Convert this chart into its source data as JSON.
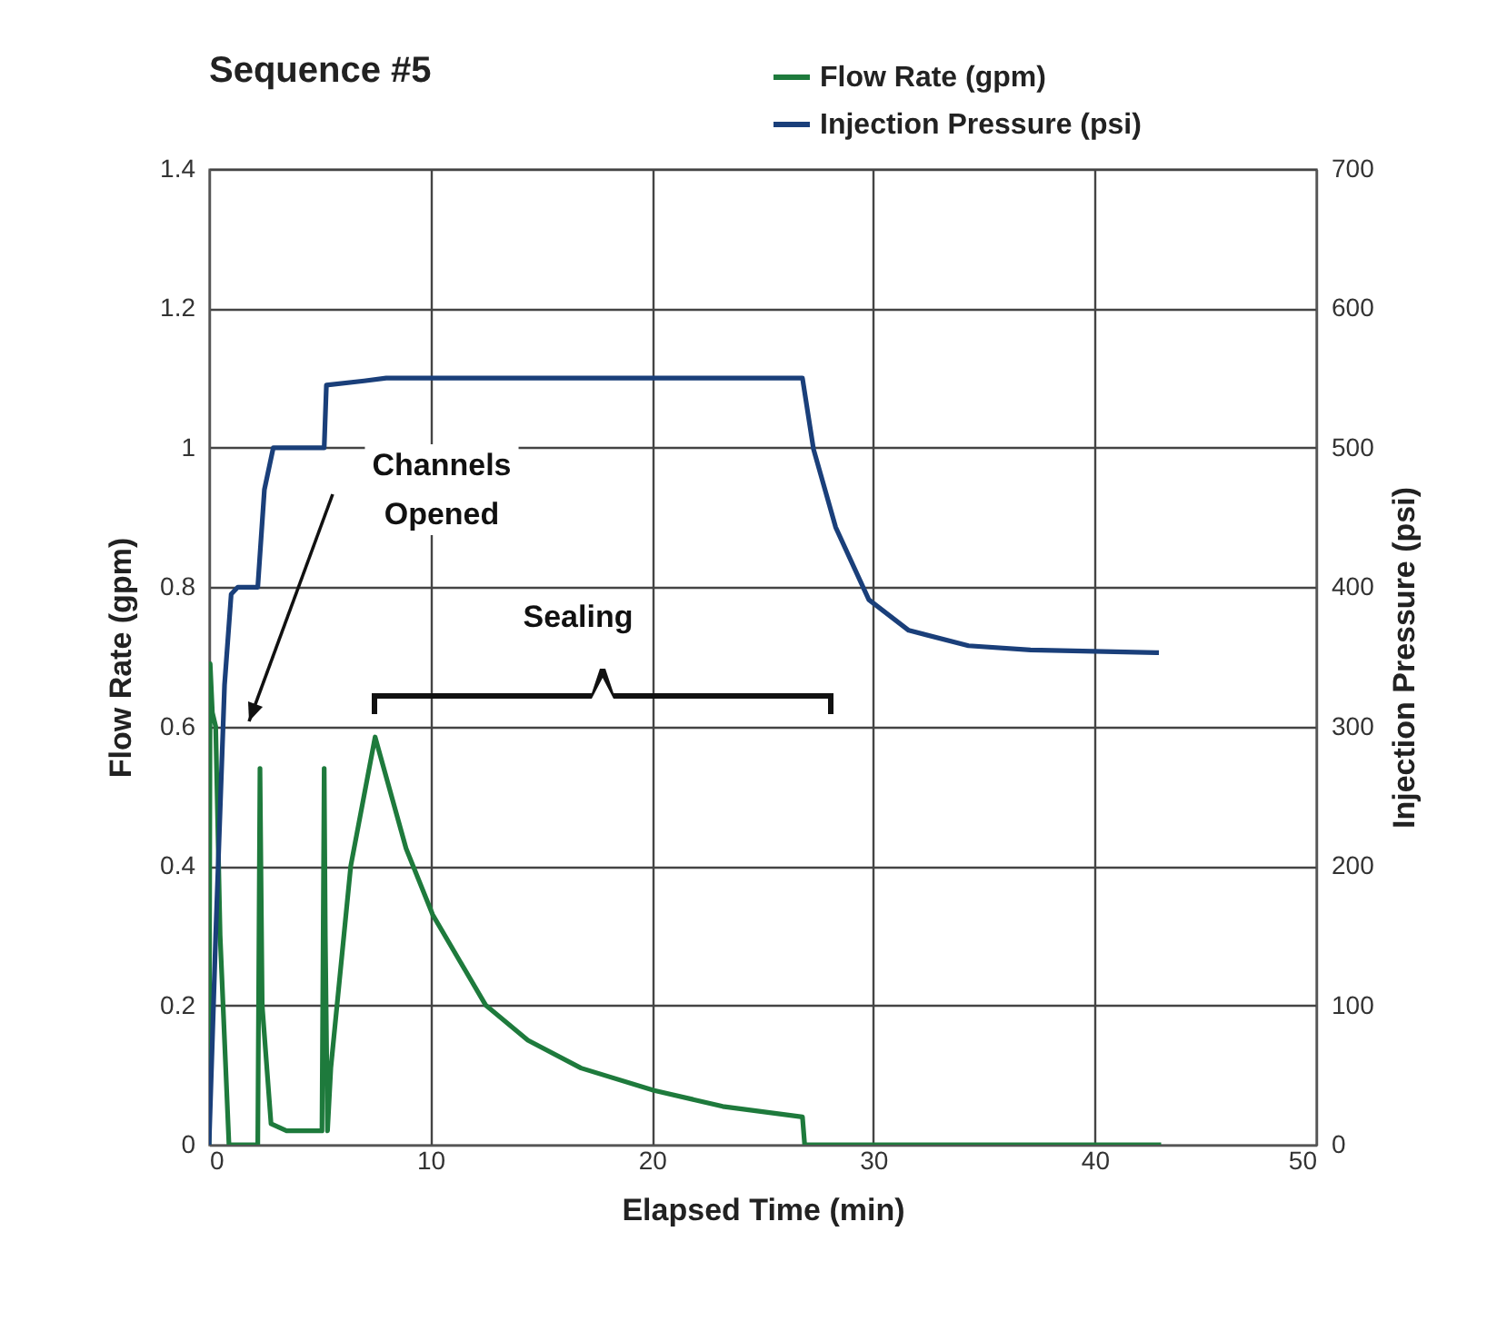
{
  "chart_data": {
    "type": "line",
    "title": "Sequence #5",
    "xlabel": "Elapsed Time (min)",
    "ylabel": "Flow Rate (gpm)",
    "y2label": "Injection Pressure (psi)",
    "xlim": [
      0,
      50
    ],
    "xticks": [
      0,
      10,
      20,
      30,
      40,
      50
    ],
    "ylim": [
      0,
      1.4
    ],
    "yticks": [
      0,
      0.2,
      0.4,
      0.6,
      0.8,
      1,
      1.2,
      1.4
    ],
    "y2lim": [
      0,
      700
    ],
    "y2ticks": [
      0,
      100,
      200,
      300,
      400,
      500,
      600,
      700
    ],
    "grid": true,
    "legend": "top right",
    "marker": "none",
    "line_style": "solid",
    "annotations": [
      "Channels Opened",
      "Sealing"
    ],
    "series": [
      {
        "name": "Flow Rate (gpm)",
        "color": "#1e7a3c",
        "x": [
          0,
          0.05,
          0.15,
          0.3,
          0.5,
          0.9,
          1.2,
          2.2,
          2.3,
          2.4,
          2.8,
          3.5,
          5.1,
          5.2,
          5.25,
          5.35,
          5.5,
          6.4,
          7.5,
          8.9,
          10.1,
          12.5,
          14.4,
          16.8,
          20.1,
          23.2,
          26.8,
          26.9,
          43
        ],
        "values": [
          0,
          0.69,
          0.62,
          0.6,
          0.3,
          0,
          0,
          0,
          0.54,
          0.2,
          0.03,
          0.02,
          0.02,
          0.54,
          0.3,
          0.02,
          0.11,
          0.4,
          0.585,
          0.425,
          0.33,
          0.2,
          0.15,
          0.11,
          0.078,
          0.055,
          0.04,
          0,
          0
        ]
      },
      {
        "name": "Injection Pressure (psi)",
        "color": "#1a3f7a",
        "axis": "y2",
        "x": [
          0,
          0.3,
          0.7,
          1,
          1.3,
          2.2,
          2.5,
          2.9,
          5.2,
          5.3,
          7,
          8,
          26.8,
          27.3,
          28.3,
          29.8,
          31.6,
          34.3,
          37.1,
          42.9
        ],
        "values": [
          0,
          150,
          330,
          395,
          400,
          400,
          470,
          500,
          500,
          545,
          548,
          550,
          550,
          499,
          443,
          391,
          369,
          358,
          355,
          353
        ]
      }
    ]
  }
}
